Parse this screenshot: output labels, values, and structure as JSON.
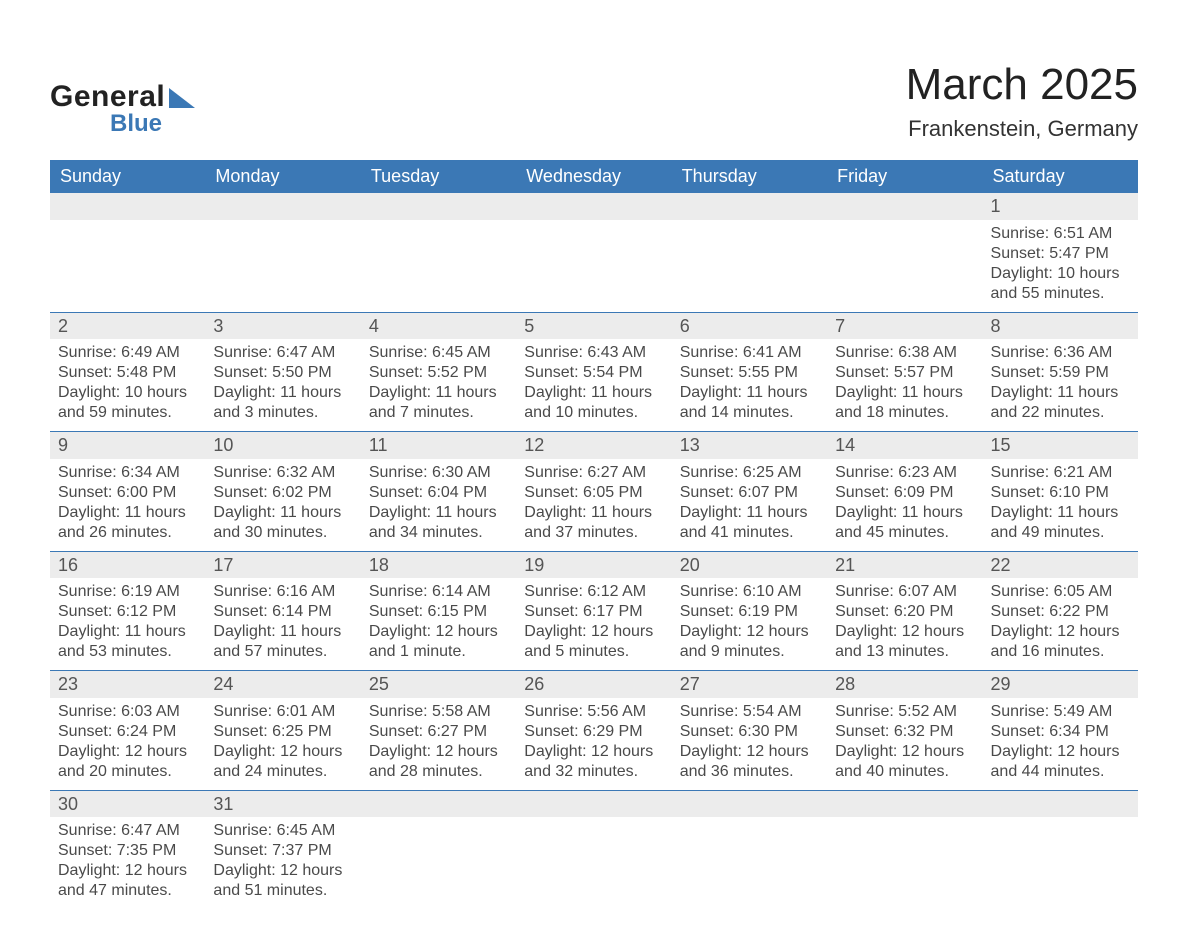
{
  "branding": {
    "logo_word1": "General",
    "logo_word2": "Blue",
    "logo_color": "#3b78b5"
  },
  "header": {
    "month_title": "March 2025",
    "location": "Frankenstein, Germany"
  },
  "style": {
    "header_bg": "#3b78b5",
    "header_text": "#ffffff",
    "daynum_bg": "#ececec",
    "row_divider": "#3b78b5",
    "body_text": "#4a4a4a",
    "page_bg": "#ffffff",
    "title_fontsize_pt": 33,
    "location_fontsize_pt": 17,
    "dayheader_fontsize_pt": 14,
    "cell_fontsize_pt": 12
  },
  "calendar": {
    "day_headers": [
      "Sunday",
      "Monday",
      "Tuesday",
      "Wednesday",
      "Thursday",
      "Friday",
      "Saturday"
    ],
    "weeks": [
      [
        null,
        null,
        null,
        null,
        null,
        null,
        {
          "n": "1",
          "sunrise": "Sunrise: 6:51 AM",
          "sunset": "Sunset: 5:47 PM",
          "daylight": "Daylight: 10 hours and 55 minutes."
        }
      ],
      [
        {
          "n": "2",
          "sunrise": "Sunrise: 6:49 AM",
          "sunset": "Sunset: 5:48 PM",
          "daylight": "Daylight: 10 hours and 59 minutes."
        },
        {
          "n": "3",
          "sunrise": "Sunrise: 6:47 AM",
          "sunset": "Sunset: 5:50 PM",
          "daylight": "Daylight: 11 hours and 3 minutes."
        },
        {
          "n": "4",
          "sunrise": "Sunrise: 6:45 AM",
          "sunset": "Sunset: 5:52 PM",
          "daylight": "Daylight: 11 hours and 7 minutes."
        },
        {
          "n": "5",
          "sunrise": "Sunrise: 6:43 AM",
          "sunset": "Sunset: 5:54 PM",
          "daylight": "Daylight: 11 hours and 10 minutes."
        },
        {
          "n": "6",
          "sunrise": "Sunrise: 6:41 AM",
          "sunset": "Sunset: 5:55 PM",
          "daylight": "Daylight: 11 hours and 14 minutes."
        },
        {
          "n": "7",
          "sunrise": "Sunrise: 6:38 AM",
          "sunset": "Sunset: 5:57 PM",
          "daylight": "Daylight: 11 hours and 18 minutes."
        },
        {
          "n": "8",
          "sunrise": "Sunrise: 6:36 AM",
          "sunset": "Sunset: 5:59 PM",
          "daylight": "Daylight: 11 hours and 22 minutes."
        }
      ],
      [
        {
          "n": "9",
          "sunrise": "Sunrise: 6:34 AM",
          "sunset": "Sunset: 6:00 PM",
          "daylight": "Daylight: 11 hours and 26 minutes."
        },
        {
          "n": "10",
          "sunrise": "Sunrise: 6:32 AM",
          "sunset": "Sunset: 6:02 PM",
          "daylight": "Daylight: 11 hours and 30 minutes."
        },
        {
          "n": "11",
          "sunrise": "Sunrise: 6:30 AM",
          "sunset": "Sunset: 6:04 PM",
          "daylight": "Daylight: 11 hours and 34 minutes."
        },
        {
          "n": "12",
          "sunrise": "Sunrise: 6:27 AM",
          "sunset": "Sunset: 6:05 PM",
          "daylight": "Daylight: 11 hours and 37 minutes."
        },
        {
          "n": "13",
          "sunrise": "Sunrise: 6:25 AM",
          "sunset": "Sunset: 6:07 PM",
          "daylight": "Daylight: 11 hours and 41 minutes."
        },
        {
          "n": "14",
          "sunrise": "Sunrise: 6:23 AM",
          "sunset": "Sunset: 6:09 PM",
          "daylight": "Daylight: 11 hours and 45 minutes."
        },
        {
          "n": "15",
          "sunrise": "Sunrise: 6:21 AM",
          "sunset": "Sunset: 6:10 PM",
          "daylight": "Daylight: 11 hours and 49 minutes."
        }
      ],
      [
        {
          "n": "16",
          "sunrise": "Sunrise: 6:19 AM",
          "sunset": "Sunset: 6:12 PM",
          "daylight": "Daylight: 11 hours and 53 minutes."
        },
        {
          "n": "17",
          "sunrise": "Sunrise: 6:16 AM",
          "sunset": "Sunset: 6:14 PM",
          "daylight": "Daylight: 11 hours and 57 minutes."
        },
        {
          "n": "18",
          "sunrise": "Sunrise: 6:14 AM",
          "sunset": "Sunset: 6:15 PM",
          "daylight": "Daylight: 12 hours and 1 minute."
        },
        {
          "n": "19",
          "sunrise": "Sunrise: 6:12 AM",
          "sunset": "Sunset: 6:17 PM",
          "daylight": "Daylight: 12 hours and 5 minutes."
        },
        {
          "n": "20",
          "sunrise": "Sunrise: 6:10 AM",
          "sunset": "Sunset: 6:19 PM",
          "daylight": "Daylight: 12 hours and 9 minutes."
        },
        {
          "n": "21",
          "sunrise": "Sunrise: 6:07 AM",
          "sunset": "Sunset: 6:20 PM",
          "daylight": "Daylight: 12 hours and 13 minutes."
        },
        {
          "n": "22",
          "sunrise": "Sunrise: 6:05 AM",
          "sunset": "Sunset: 6:22 PM",
          "daylight": "Daylight: 12 hours and 16 minutes."
        }
      ],
      [
        {
          "n": "23",
          "sunrise": "Sunrise: 6:03 AM",
          "sunset": "Sunset: 6:24 PM",
          "daylight": "Daylight: 12 hours and 20 minutes."
        },
        {
          "n": "24",
          "sunrise": "Sunrise: 6:01 AM",
          "sunset": "Sunset: 6:25 PM",
          "daylight": "Daylight: 12 hours and 24 minutes."
        },
        {
          "n": "25",
          "sunrise": "Sunrise: 5:58 AM",
          "sunset": "Sunset: 6:27 PM",
          "daylight": "Daylight: 12 hours and 28 minutes."
        },
        {
          "n": "26",
          "sunrise": "Sunrise: 5:56 AM",
          "sunset": "Sunset: 6:29 PM",
          "daylight": "Daylight: 12 hours and 32 minutes."
        },
        {
          "n": "27",
          "sunrise": "Sunrise: 5:54 AM",
          "sunset": "Sunset: 6:30 PM",
          "daylight": "Daylight: 12 hours and 36 minutes."
        },
        {
          "n": "28",
          "sunrise": "Sunrise: 5:52 AM",
          "sunset": "Sunset: 6:32 PM",
          "daylight": "Daylight: 12 hours and 40 minutes."
        },
        {
          "n": "29",
          "sunrise": "Sunrise: 5:49 AM",
          "sunset": "Sunset: 6:34 PM",
          "daylight": "Daylight: 12 hours and 44 minutes."
        }
      ],
      [
        {
          "n": "30",
          "sunrise": "Sunrise: 6:47 AM",
          "sunset": "Sunset: 7:35 PM",
          "daylight": "Daylight: 12 hours and 47 minutes."
        },
        {
          "n": "31",
          "sunrise": "Sunrise: 6:45 AM",
          "sunset": "Sunset: 7:37 PM",
          "daylight": "Daylight: 12 hours and 51 minutes."
        },
        null,
        null,
        null,
        null,
        null
      ]
    ]
  }
}
